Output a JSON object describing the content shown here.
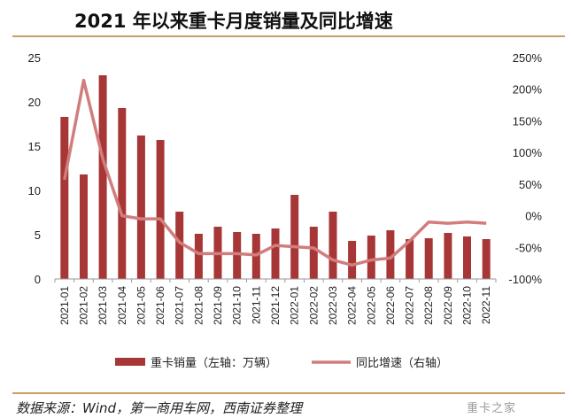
{
  "title": "2021 年以来重卡月度销量及同比增速",
  "source": "数据来源：Wind，第一商用车网，西南证券整理",
  "watermark": "重卡之家",
  "colors": {
    "bar": "#a73737",
    "line": "#d27d7d",
    "rule": "#c8a061",
    "axis": "#9a9a9a"
  },
  "chart_data": {
    "type": "bar",
    "title": "2021 年以来重卡月度销量及同比增速",
    "categories": [
      "2021-01",
      "2021-02",
      "2021-03",
      "2021-04",
      "2021-05",
      "2021-06",
      "2021-07",
      "2021-08",
      "2021-09",
      "2021-10",
      "2021-11",
      "2021-12",
      "2022-01",
      "2022-02",
      "2022-03",
      "2022-04",
      "2022-05",
      "2022-06",
      "2022-07",
      "2022-08",
      "2022-09",
      "2022-10",
      "2022-11"
    ],
    "series": [
      {
        "name": "重卡销量（左轴：万辆）",
        "type": "bar",
        "axis": "left",
        "values": [
          18.3,
          11.8,
          23.0,
          19.3,
          16.2,
          15.7,
          7.6,
          5.1,
          5.9,
          5.3,
          5.1,
          5.7,
          9.5,
          5.9,
          7.6,
          4.3,
          4.9,
          5.5,
          4.5,
          4.6,
          5.2,
          4.8,
          4.5
        ]
      },
      {
        "name": "同比增速（右轴）",
        "type": "line",
        "axis": "right",
        "unit": "%",
        "values": [
          57,
          214,
          90,
          0,
          -5,
          -5,
          -42,
          -60,
          -60,
          -60,
          -62,
          -47,
          -49,
          -51,
          -70,
          -78,
          -70,
          -67,
          -40,
          -10,
          -12,
          -10,
          -12
        ]
      }
    ],
    "y_left": {
      "min": 0,
      "max": 25,
      "ticks": [
        0,
        5,
        10,
        15,
        20,
        25
      ]
    },
    "y_right": {
      "min": -100,
      "max": 250,
      "ticks": [
        "-100%",
        "-50%",
        "0%",
        "50%",
        "100%",
        "150%",
        "200%",
        "250%"
      ]
    },
    "legend": {
      "position": "bottom"
    },
    "grid": false
  }
}
